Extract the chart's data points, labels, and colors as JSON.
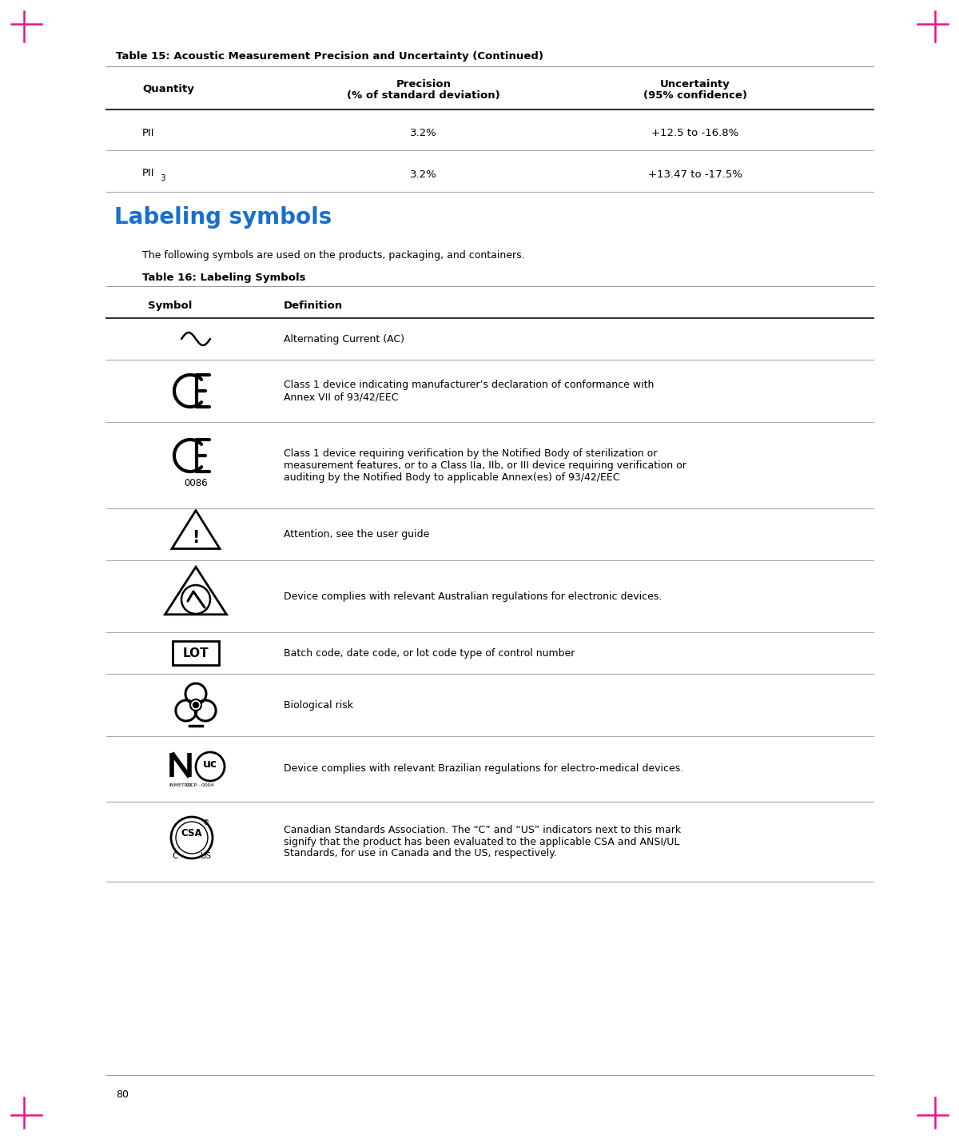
{
  "page_bg": "#ffffff",
  "page_num": "80",
  "table15_title": "Table 15: Acoustic Measurement Precision and Uncertainty (Continued)",
  "table15_rows": [
    [
      "PII",
      "3.2%",
      "+12.5 to -16.8%"
    ],
    [
      "PII3",
      "3.2%",
      "+13.47 to -17.5%"
    ]
  ],
  "section_heading": "Labeling symbols",
  "section_heading_color": "#1a6fcc",
  "section_intro": "The following symbols are used on the products, packaging, and containers.",
  "table16_title": "Table 16: Labeling Symbols",
  "table16_rows": [
    [
      "ac_symbol",
      "Alternating Current (AC)"
    ],
    [
      "ce_symbol",
      "Class 1 device indicating manufacturer’s declaration of conformance with\nAnnex VII of 93/42/EEC"
    ],
    [
      "ce0086_symbol",
      "Class 1 device requiring verification by the Notified Body of sterilization or\nmeasurement features, or to a Class IIa, IIb, or III device requiring verification or\nauditing by the Notified Body to applicable Annex(es) of 93/42/EEC"
    ],
    [
      "warning_symbol",
      "Attention, see the user guide"
    ],
    [
      "australia_symbol",
      "Device complies with relevant Australian regulations for electronic devices."
    ],
    [
      "lot_symbol",
      "Batch code, date code, or lot code type of control number"
    ],
    [
      "bio_symbol",
      "Biological risk"
    ],
    [
      "brazil_symbol",
      "Device complies with relevant Brazilian regulations for electro-medical devices."
    ],
    [
      "csa_symbol",
      "Canadian Standards Association. The “C” and “US” indicators next to this mark\nsignify that the product has been evaluated to the applicable CSA and ANSI/UL\nStandards, for use in Canada and the US, respectively."
    ]
  ],
  "text_color": "#000000",
  "line_gray": "#aaaaaa",
  "line_dark": "#333333"
}
